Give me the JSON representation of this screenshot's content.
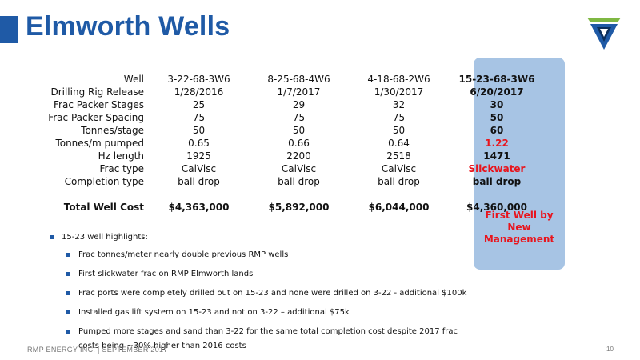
{
  "slide": {
    "title": "Elmworth Wells",
    "footer": "RMP ENERGY INC. | SEPTEMBER 2017",
    "page_number": "10"
  },
  "table": {
    "rows": [
      {
        "label": "Well",
        "v1": "3-22-68-3W6",
        "v2": "8-25-68-4W6",
        "v3": "4-18-68-2W6",
        "v4": "15-23-68-3W6",
        "v4_red": false
      },
      {
        "label": "Drilling Rig Release",
        "v1": "1/28/2016",
        "v2": "1/7/2017",
        "v3": "1/30/2017",
        "v4": "6/20/2017",
        "v4_red": false
      },
      {
        "label": "Frac Packer Stages",
        "v1": "25",
        "v2": "29",
        "v3": "32",
        "v4": "30",
        "v4_red": false
      },
      {
        "label": "Frac Packer Spacing",
        "v1": "75",
        "v2": "75",
        "v3": "75",
        "v4": "50",
        "v4_red": false
      },
      {
        "label": "Tonnes/stage",
        "v1": "50",
        "v2": "50",
        "v3": "50",
        "v4": "60",
        "v4_red": false
      },
      {
        "label": "Tonnes/m pumped",
        "v1": "0.65",
        "v2": "0.66",
        "v3": "0.64",
        "v4": "1.22",
        "v4_red": true
      },
      {
        "label": "Hz length",
        "v1": "1925",
        "v2": "2200",
        "v3": "2518",
        "v4": "1471",
        "v4_red": false
      },
      {
        "label": "Frac type",
        "v1": "CalVisc",
        "v2": "CalVisc",
        "v3": "CalVisc",
        "v4": "Slickwater",
        "v4_red": true
      },
      {
        "label": "Completion type",
        "v1": "ball drop",
        "v2": "ball drop",
        "v3": "ball drop",
        "v4": "ball drop",
        "v4_red": false
      }
    ],
    "total": {
      "label": "Total Well Cost",
      "v1": "$4,363,000",
      "v2": "$5,892,000",
      "v3": "$6,044,000",
      "v4": "$4,360,000"
    }
  },
  "callout": {
    "line1": "First Well by",
    "line2": "New Management"
  },
  "highlights": {
    "heading": "15-23 well highlights:",
    "items": [
      "Frac tonnes/meter nearly double previous RMP wells",
      "First slickwater frac on RMP Elmworth lands",
      "Frac ports were completely drilled out on 15-23 and none were drilled on 3-22 - additional $100k",
      "Installed gas lift system on 15-23 and not on 3-22 – additional $75k",
      "Pumped more stages and sand than 3-22 for the same total completion cost despite 2017 frac costs being ~30% higher than 2016 costs"
    ]
  },
  "colors": {
    "brand_blue": "#1f5aa6",
    "highlight_panel": "#a7c4e4",
    "accent_red": "#e8141c"
  },
  "logo": {
    "icon": "rmp-chevron-logo"
  }
}
